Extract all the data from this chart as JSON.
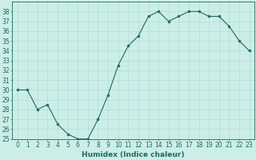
{
  "x": [
    0,
    1,
    2,
    3,
    4,
    5,
    6,
    7,
    8,
    9,
    10,
    11,
    12,
    13,
    14,
    15,
    16,
    17,
    18,
    19,
    20,
    21,
    22,
    23
  ],
  "y": [
    30,
    30,
    28,
    28.5,
    26.5,
    25.5,
    25,
    25,
    27,
    29.5,
    32.5,
    34.5,
    35.5,
    37.5,
    38,
    37,
    37.5,
    38,
    38,
    37.5,
    37.5,
    36.5,
    35,
    34
  ],
  "line_color": "#1a6b5a",
  "marker": "o",
  "marker_size": 2.0,
  "bg_color": "#cceee8",
  "grid_color": "#aad8d2",
  "xlabel": "Humidex (Indice chaleur)",
  "ylabel": "",
  "xlim": [
    -0.5,
    23.5
  ],
  "ylim": [
    25,
    39
  ],
  "yticks": [
    25,
    26,
    27,
    28,
    29,
    30,
    31,
    32,
    33,
    34,
    35,
    36,
    37,
    38
  ],
  "xticks": [
    0,
    1,
    2,
    3,
    4,
    5,
    6,
    7,
    8,
    9,
    10,
    11,
    12,
    13,
    14,
    15,
    16,
    17,
    18,
    19,
    20,
    21,
    22,
    23
  ],
  "tick_color": "#1a6b5a",
  "label_fontsize": 6.5,
  "tick_fontsize": 5.5,
  "line_width": 0.8
}
